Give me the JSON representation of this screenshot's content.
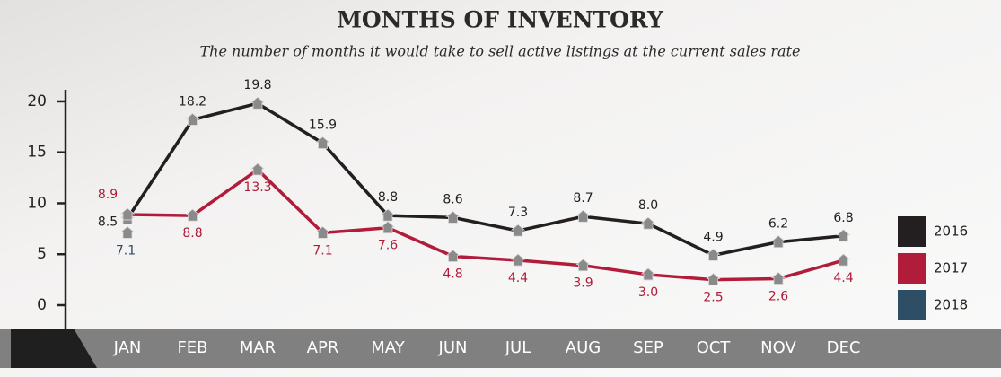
{
  "chart_data": {
    "type": "line",
    "title": "MONTHS OF INVENTORY",
    "subtitle": "The number of months it would take to sell active listings at the current sales rate",
    "categories": [
      "JAN",
      "FEB",
      "MAR",
      "APR",
      "MAY",
      "JUN",
      "JUL",
      "AUG",
      "SEP",
      "OCT",
      "NOV",
      "DEC"
    ],
    "series": [
      {
        "name": "2016",
        "color": "#231f20",
        "values": [
          8.5,
          18.2,
          19.8,
          15.9,
          8.8,
          8.6,
          7.3,
          8.7,
          8,
          4.9,
          6.2,
          6.8
        ],
        "value_labels": [
          "8.5",
          "18.2",
          "19.8",
          "15.9",
          "8.8",
          "8.6",
          "7.3",
          "8.7",
          "8.0",
          "4.9",
          "6.2",
          "6.8"
        ]
      },
      {
        "name": "2017",
        "color": "#b01c3a",
        "values": [
          8.9,
          8.8,
          13.3,
          7.1,
          7.6,
          4.8,
          4.4,
          3.9,
          3,
          2.5,
          2.6,
          4.4
        ],
        "value_labels": [
          "8.9",
          "8.8",
          "13.3",
          "7.1",
          "7.6",
          "4.8",
          "4.4",
          "3.9",
          "3.0",
          "2.5",
          "2.6",
          "4.4"
        ]
      },
      {
        "name": "2018",
        "color": "#2e4e66",
        "values": [
          7.1,
          null,
          null,
          null,
          null,
          null,
          null,
          null,
          null,
          null,
          null,
          null
        ],
        "value_labels": [
          "7.1",
          null,
          null,
          null,
          null,
          null,
          null,
          null,
          null,
          null,
          null,
          null
        ]
      }
    ],
    "ylim": [
      -2,
      21
    ],
    "yticks": [
      0,
      5,
      10,
      15,
      20
    ],
    "legend": "right"
  }
}
